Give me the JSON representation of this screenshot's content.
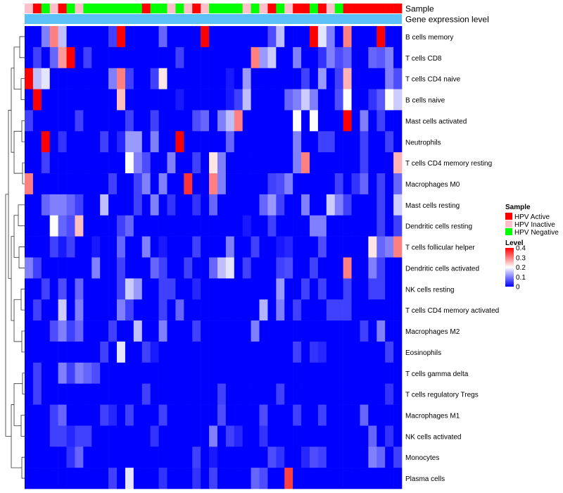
{
  "chart_data": {
    "type": "heatmap",
    "title": "",
    "annotation_rows": [
      "Sample",
      "Gene expression level"
    ],
    "rows": [
      "B cells memory",
      "T cells CD8",
      "T cells CD4 naive",
      "B cells naive",
      "Mast cells activated",
      "Neutrophils",
      "T cells CD4 memory resting",
      "Macrophages M0",
      "Mast cells resting",
      "Dendritic cells resting",
      "T cells follicular helper",
      "Dendritic cells activated",
      "NK cells resting",
      "T cells CD4 memory activated",
      "Macrophages M2",
      "Eosinophils",
      "T cells gamma delta",
      "T cells regulatory  Tregs",
      "Macrophages M1",
      "NK cells activated",
      "Monocytes",
      "Plasma cells"
    ],
    "sample_groups": [
      "Inactive",
      "Active",
      "Negative",
      "Inactive",
      "Active",
      "Negative",
      "Inactive",
      "Negative",
      "Negative",
      "Negative",
      "Negative",
      "Negative",
      "Negative",
      "Negative",
      "Active",
      "Negative",
      "Negative",
      "Inactive",
      "Negative",
      "Inactive",
      "Active",
      "Inactive",
      "Negative",
      "Negative",
      "Negative",
      "Negative",
      "Inactive",
      "Negative",
      "Inactive",
      "Active",
      "Negative",
      "Inactive",
      "Active",
      "Active",
      "Negative",
      "Active",
      "Inactive",
      "Negative",
      "Active",
      "Active",
      "Active",
      "Active",
      "Active",
      "Active",
      "Active"
    ],
    "values": [
      [
        0,
        0,
        0.1,
        0.3,
        0.15,
        0,
        0,
        0,
        0,
        0,
        0.05,
        0.4,
        0,
        0,
        0,
        0,
        0.08,
        0,
        0,
        0,
        0,
        0.4,
        0,
        0,
        0,
        0,
        0,
        0,
        0,
        0.06,
        0.15,
        0,
        0,
        0,
        0.4,
        0.18,
        0.1,
        0,
        0.3,
        0,
        0,
        0,
        0.4,
        0,
        0
      ],
      [
        0,
        0.05,
        0,
        0.08,
        0.28,
        0.4,
        0,
        0.05,
        0,
        0,
        0,
        0,
        0,
        0,
        0,
        0,
        0,
        0,
        0.05,
        0,
        0,
        0,
        0,
        0,
        0,
        0,
        0,
        0.3,
        0.12,
        0.16,
        0,
        0,
        0.1,
        0,
        0,
        0.04,
        0.1,
        0.06,
        0.08,
        0,
        0,
        0.08,
        0.07,
        0.1,
        0
      ],
      [
        0.4,
        0.15,
        0.18,
        0,
        0,
        0,
        0,
        0,
        0,
        0,
        0.1,
        0.3,
        0.05,
        0,
        0,
        0.05,
        0.22,
        0,
        0,
        0,
        0,
        0,
        0,
        0,
        0.02,
        0,
        0.12,
        0,
        0,
        0,
        0,
        0,
        0,
        0.05,
        0,
        0.12,
        0,
        0.05,
        0.26,
        0,
        0,
        0,
        0,
        0.1,
        0.06
      ],
      [
        0,
        0.4,
        0,
        0,
        0,
        0,
        0,
        0,
        0,
        0,
        0,
        0.25,
        0,
        0,
        0,
        0,
        0,
        0,
        0.02,
        0,
        0,
        0,
        0,
        0,
        0.02,
        0.05,
        0.15,
        0,
        0,
        0,
        0,
        0.08,
        0.1,
        0.16,
        0.1,
        0,
        0,
        0.06,
        0.2,
        0,
        0,
        0.04,
        0.07,
        0.2,
        0.16
      ],
      [
        0.05,
        0,
        0,
        0,
        0,
        0,
        0.05,
        0,
        0,
        0,
        0,
        0,
        0.05,
        0,
        0,
        0.05,
        0,
        0,
        0,
        0,
        0.06,
        0.08,
        0,
        0.1,
        0.15,
        0.3,
        0,
        0,
        0,
        0,
        0,
        0,
        0.2,
        0,
        0.2,
        0,
        0,
        0,
        0.4,
        0,
        0.1,
        0,
        0.05,
        0,
        0
      ],
      [
        0,
        0,
        0.4,
        0,
        0.04,
        0,
        0,
        0,
        0,
        0.05,
        0,
        0.03,
        0.12,
        0.12,
        0,
        0.1,
        0,
        0,
        0.4,
        0,
        0,
        0,
        0,
        0,
        0.08,
        0,
        0,
        0,
        0,
        0,
        0,
        0,
        0.1,
        0,
        0,
        0.05,
        0.05,
        0,
        0,
        0,
        0.05,
        0,
        0,
        0.05,
        0
      ],
      [
        0,
        0,
        0.05,
        0,
        0,
        0,
        0,
        0,
        0,
        0,
        0,
        0,
        0.2,
        0.1,
        0.06,
        0,
        0,
        0.1,
        0,
        0,
        0.05,
        0,
        0.22,
        0.1,
        0,
        0,
        0,
        0,
        0,
        0,
        0,
        0,
        0.1,
        0.3,
        0,
        0,
        0,
        0,
        0,
        0,
        0.05,
        0,
        0,
        0,
        0.26
      ],
      [
        0.3,
        0,
        0,
        0,
        0,
        0,
        0,
        0,
        0,
        0,
        0.05,
        0,
        0,
        0.05,
        0.1,
        0,
        0.1,
        0,
        0,
        0.36,
        0,
        0,
        0.3,
        0.1,
        0,
        0,
        0,
        0,
        0,
        0.05,
        0.06,
        0.1,
        0,
        0,
        0,
        0,
        0,
        0.05,
        0,
        0.04,
        0.08,
        0,
        0.05,
        0,
        0.08
      ],
      [
        0,
        0,
        0.08,
        0.1,
        0.1,
        0.08,
        0.05,
        0,
        0,
        0.15,
        0,
        0,
        0,
        0.05,
        0,
        0.1,
        0,
        0.04,
        0,
        0,
        0.04,
        0,
        0.08,
        0,
        0,
        0,
        0,
        0,
        0.08,
        0.12,
        0.05,
        0,
        0,
        0.1,
        0,
        0,
        0.16,
        0.1,
        0.05,
        0,
        0,
        0,
        0.05,
        0,
        0.16
      ],
      [
        0,
        0,
        0,
        0.2,
        0.08,
        0.06,
        0.25,
        0,
        0,
        0,
        0,
        0.05,
        0.08,
        0,
        0,
        0,
        0,
        0,
        0,
        0,
        0,
        0,
        0,
        0,
        0,
        0,
        0.02,
        0,
        0,
        0.05,
        0,
        0,
        0,
        0,
        0.1,
        0.1,
        0,
        0,
        0,
        0,
        0,
        0,
        0.05,
        0,
        0.05
      ],
      [
        0,
        0,
        0,
        0.05,
        0.02,
        0.05,
        0,
        0,
        0.02,
        0,
        0,
        0.08,
        0,
        0,
        0.1,
        0,
        0.02,
        0,
        0,
        0,
        0.05,
        0,
        0,
        0,
        0.1,
        0,
        0,
        0.05,
        0,
        0,
        0.02,
        0.03,
        0,
        0,
        0,
        0.06,
        0,
        0,
        0,
        0,
        0,
        0.22,
        0.08,
        0.1,
        0.3
      ],
      [
        0.1,
        0.05,
        0,
        0,
        0,
        0,
        0,
        0,
        0.1,
        0,
        0,
        0.05,
        0,
        0,
        0,
        0.08,
        0.05,
        0,
        0,
        0.05,
        0,
        0,
        0.08,
        0.15,
        0.18,
        0,
        0.05,
        0,
        0,
        0,
        0.05,
        0.06,
        0,
        0,
        0.05,
        0,
        0,
        0,
        0.3,
        0,
        0,
        0.1,
        0.05,
        0,
        0
      ],
      [
        0,
        0,
        0.05,
        0,
        0.06,
        0,
        0.08,
        0,
        0,
        0,
        0,
        0.05,
        0.16,
        0.12,
        0,
        0,
        0.05,
        0.05,
        0,
        0,
        0.03,
        0,
        0,
        0,
        0,
        0,
        0,
        0,
        0,
        0,
        0.12,
        0,
        0,
        0.05,
        0,
        0.05,
        0,
        0,
        0.05,
        0,
        0,
        0.05,
        0.05,
        0,
        0
      ],
      [
        0,
        0.05,
        0,
        0,
        0.16,
        0,
        0.1,
        0,
        0,
        0,
        0,
        0.1,
        0.05,
        0,
        0,
        0,
        0.05,
        0,
        0.08,
        0,
        0,
        0,
        0,
        0,
        0,
        0,
        0,
        0,
        0.14,
        0,
        0.1,
        0,
        0.05,
        0,
        0,
        0,
        0.05,
        0.05,
        0.05,
        0,
        0,
        0,
        0,
        0,
        0
      ],
      [
        0,
        0,
        0,
        0.06,
        0.1,
        0.05,
        0.08,
        0,
        0,
        0,
        0.05,
        0,
        0,
        0.15,
        0,
        0,
        0.1,
        0,
        0,
        0,
        0.05,
        0,
        0,
        0,
        0,
        0,
        0,
        0.1,
        0,
        0,
        0,
        0,
        0,
        0,
        0,
        0,
        0,
        0,
        0,
        0,
        0.05,
        0,
        0.1,
        0,
        0
      ],
      [
        0,
        0,
        0,
        0,
        0,
        0,
        0,
        0,
        0,
        0.05,
        0,
        0.18,
        0,
        0,
        0.05,
        0.02,
        0,
        0,
        0,
        0,
        0,
        0,
        0,
        0,
        0,
        0,
        0,
        0,
        0,
        0,
        0,
        0,
        0.05,
        0,
        0.04,
        0.03,
        0,
        0,
        0,
        0,
        0,
        0,
        0,
        0.05,
        0
      ],
      [
        0,
        0.05,
        0,
        0,
        0.1,
        0.05,
        0.1,
        0.08,
        0.06,
        0,
        0,
        0,
        0,
        0,
        0,
        0,
        0,
        0,
        0,
        0,
        0,
        0,
        0,
        0,
        0,
        0,
        0,
        0,
        0,
        0,
        0,
        0,
        0,
        0,
        0,
        0,
        0,
        0,
        0,
        0,
        0,
        0,
        0,
        0,
        0
      ],
      [
        0,
        0.05,
        0,
        0,
        0,
        0,
        0,
        0,
        0,
        0,
        0,
        0,
        0,
        0,
        0.05,
        0,
        0,
        0,
        0,
        0,
        0,
        0,
        0,
        0.05,
        0,
        0,
        0,
        0,
        0,
        0,
        0.05,
        0,
        0,
        0,
        0,
        0,
        0,
        0,
        0,
        0,
        0,
        0,
        0,
        0.04,
        0
      ],
      [
        0,
        0,
        0,
        0.05,
        0.08,
        0,
        0,
        0,
        0,
        0.05,
        0.03,
        0,
        0.05,
        0,
        0,
        0,
        0.05,
        0,
        0,
        0,
        0,
        0,
        0,
        0.06,
        0,
        0,
        0,
        0,
        0.06,
        0,
        0,
        0,
        0.05,
        0,
        0,
        0.05,
        0,
        0,
        0,
        0,
        0.08,
        0,
        0,
        0,
        0
      ],
      [
        0,
        0,
        0,
        0.05,
        0.05,
        0.03,
        0.05,
        0.05,
        0,
        0,
        0,
        0,
        0,
        0,
        0,
        0.04,
        0,
        0,
        0,
        0,
        0,
        0,
        0.1,
        0,
        0.05,
        0.03,
        0,
        0,
        0.04,
        0,
        0,
        0,
        0,
        0,
        0,
        0,
        0,
        0,
        0,
        0,
        0,
        0.08,
        0,
        0.04,
        0
      ],
      [
        0,
        0,
        0,
        0,
        0,
        0.04,
        0.08,
        0,
        0,
        0,
        0,
        0,
        0,
        0,
        0,
        0,
        0,
        0,
        0,
        0,
        0.05,
        0,
        0.02,
        0,
        0,
        0,
        0,
        0,
        0,
        0.06,
        0.04,
        0,
        0,
        0.03,
        0.06,
        0.05,
        0,
        0,
        0,
        0,
        0,
        0.1,
        0.08,
        0,
        0.05
      ],
      [
        0,
        0,
        0,
        0,
        0,
        0,
        0,
        0,
        0,
        0,
        0.05,
        0,
        0.18,
        0,
        0,
        0,
        0.04,
        0,
        0,
        0,
        0.04,
        0,
        0.05,
        0,
        0,
        0,
        0,
        0.08,
        0.06,
        0,
        0,
        0.35,
        0,
        0,
        0,
        0,
        0,
        0,
        0,
        0,
        0,
        0,
        0,
        0,
        0
      ]
    ],
    "legend_sample": {
      "title": "Sample",
      "entries": [
        {
          "label": "HPV Active",
          "color": "#ff0000"
        },
        {
          "label": "HPV Inactive",
          "color": "#ffc0cb"
        },
        {
          "label": "HPV Negative",
          "color": "#00ff00"
        }
      ]
    },
    "legend_level": {
      "title": "Level",
      "ticks": [
        "0.4",
        "0.3",
        "0.2",
        "0.1",
        "0"
      ],
      "range": [
        0,
        0.4
      ]
    },
    "gene_expression_color": "#5bc0f8",
    "color_low": "#0000ff",
    "color_mid": "#ffffff",
    "color_high": "#ff0000"
  }
}
